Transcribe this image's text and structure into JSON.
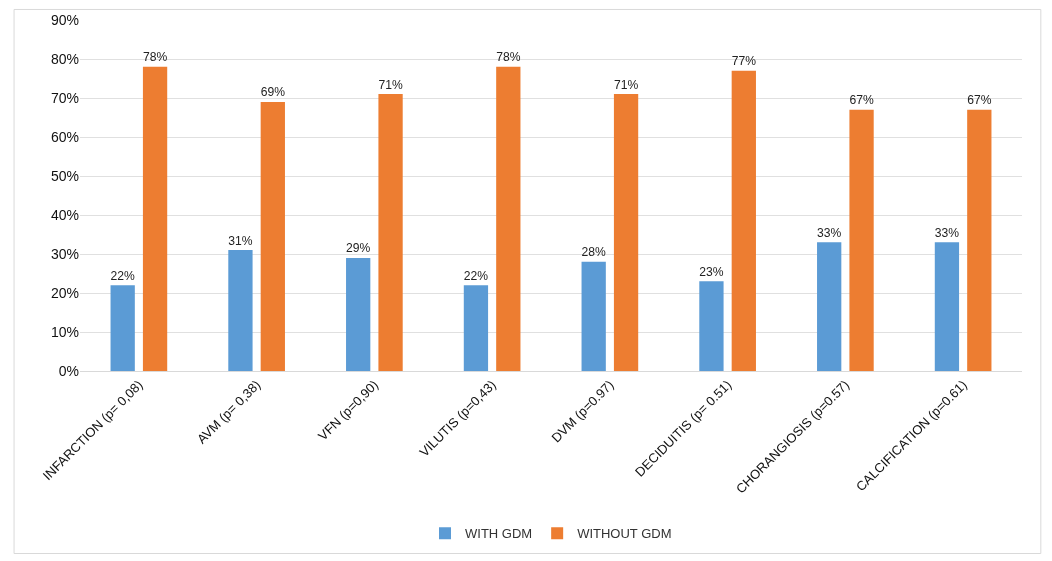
{
  "chart_data": {
    "type": "bar",
    "categories": [
      "INFARCTION (p= 0,08)",
      "AVM (p= 0,38)",
      "VFN (p=0,90)",
      "VILUTIS (p=0,43)",
      "DVM (p=0.97)",
      "DECIDUITIS (p= 0.51)",
      "CHORANGIOSIS (p=0.57)",
      "CALCIFICATION (p=0.61)"
    ],
    "series": [
      {
        "name": "WITH GDM",
        "color": "#5b9bd5",
        "values": [
          22,
          31,
          29,
          22,
          28,
          23,
          33,
          33
        ],
        "value_labels": [
          "22%",
          "31%",
          "29%",
          "22%",
          "28%",
          "23%",
          "33%",
          "33%"
        ]
      },
      {
        "name": "WITHOUT GDM",
        "color": "#ed7d31",
        "values": [
          78,
          69,
          71,
          78,
          71,
          77,
          67,
          67
        ],
        "value_labels": [
          "78%",
          "69%",
          "71%",
          "78%",
          "71%",
          "77%",
          "67%",
          "67%"
        ]
      }
    ],
    "ylim": [
      0,
      90
    ],
    "yticks": [
      {
        "value": 0,
        "label": "0%"
      },
      {
        "value": 10,
        "label": "10%"
      },
      {
        "value": 20,
        "label": "20%"
      },
      {
        "value": 30,
        "label": "30%"
      },
      {
        "value": 40,
        "label": "40%"
      },
      {
        "value": 50,
        "label": "50%"
      },
      {
        "value": 60,
        "label": "60%"
      },
      {
        "value": 70,
        "label": "70%"
      },
      {
        "value": 80,
        "label": "80%"
      },
      {
        "value": 90,
        "label": "90%"
      }
    ],
    "grid": "y",
    "legend": "bottom"
  }
}
